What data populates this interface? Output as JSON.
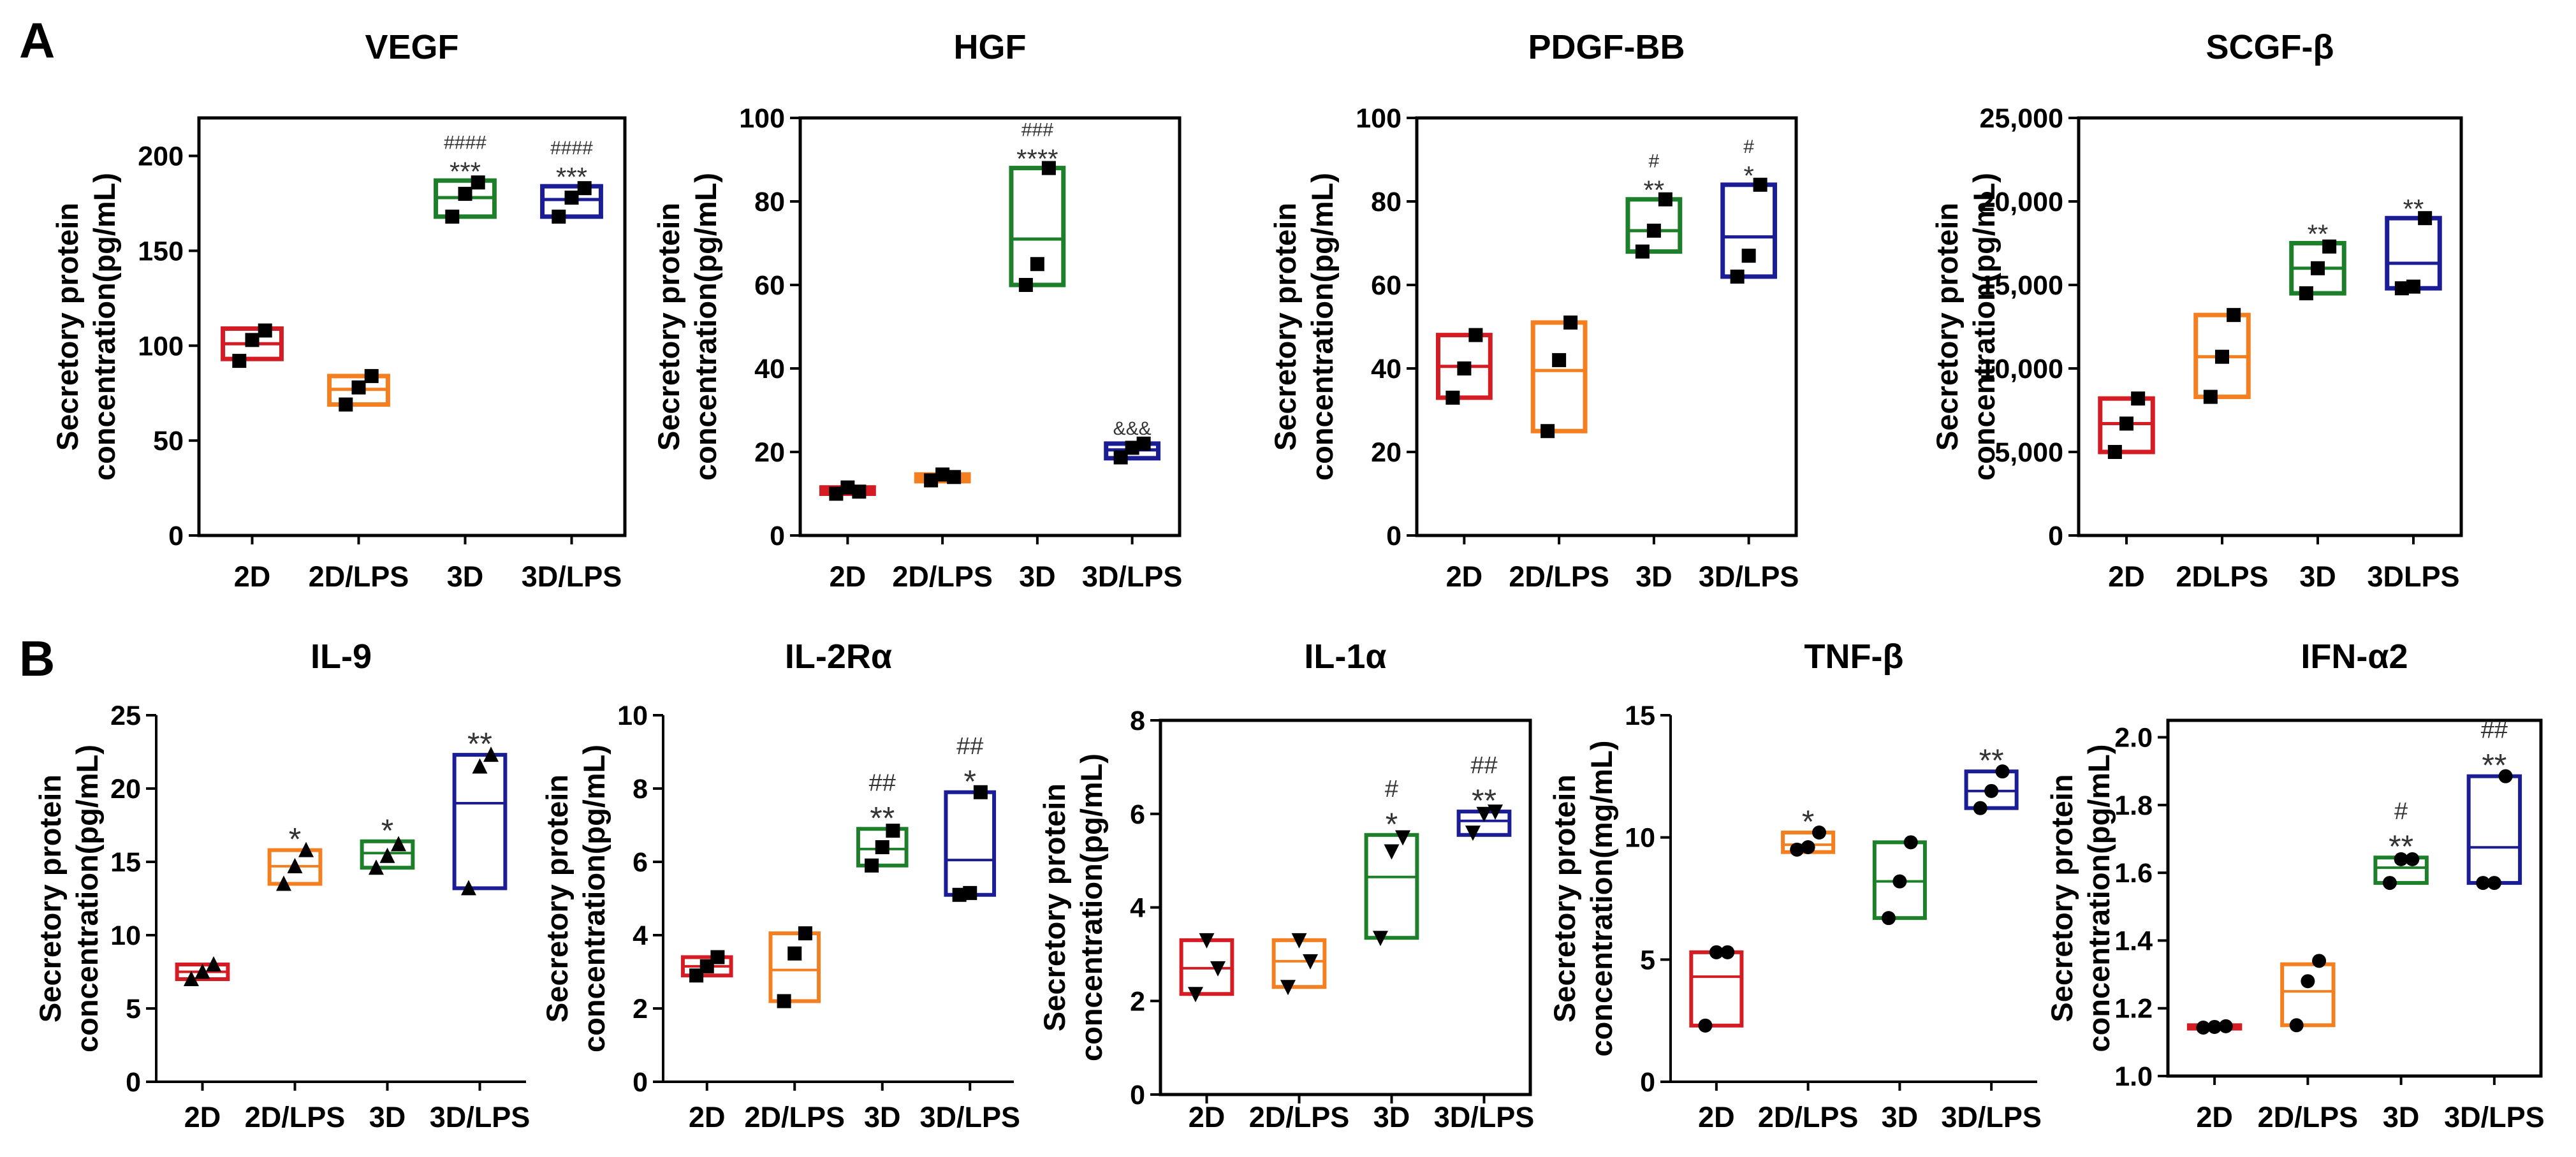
{
  "panels": [
    {
      "label": "A"
    },
    {
      "label": "B"
    }
  ],
  "colors": {
    "2D": "#d41c24",
    "2D/LPS": "#f47f20",
    "3D": "#1e7f2a",
    "3D/LPS": "#1a1d94",
    "axis": "#000000"
  },
  "chart_data": [
    {
      "type": "box",
      "panel": "A",
      "row": 0,
      "title": "VEGF",
      "ylabel": [
        "Secretory protein",
        "concentration(pg/mL)"
      ],
      "ylim": [
        0,
        220
      ],
      "yticks": [
        0,
        50,
        100,
        150,
        200
      ],
      "ytick_labels": [
        "0",
        "50",
        "100",
        "150",
        "200"
      ],
      "categories": [
        "2D",
        "2D/LPS",
        "3D",
        "3D/LPS"
      ],
      "groups": [
        {
          "q1": 93,
          "median": 101,
          "q3": 109,
          "points": [
            92,
            103,
            108
          ],
          "marker": "square",
          "annotations": []
        },
        {
          "q1": 69,
          "median": 77,
          "q3": 84,
          "points": [
            69,
            78,
            84
          ],
          "marker": "square",
          "annotations": []
        },
        {
          "q1": 168,
          "median": 178,
          "q3": 187,
          "points": [
            168,
            180,
            186
          ],
          "marker": "square",
          "annotations": [
            "####",
            "***"
          ]
        },
        {
          "q1": 168,
          "median": 177,
          "q3": 184,
          "points": [
            168,
            178,
            183
          ],
          "marker": "square",
          "annotations": [
            "####",
            "***"
          ]
        }
      ]
    },
    {
      "type": "box",
      "panel": "A",
      "row": 0,
      "title": "HGF",
      "ylabel": [
        "Secretory protein",
        "concentration(pg/mL)"
      ],
      "ylim": [
        0,
        100
      ],
      "yticks": [
        0,
        20,
        40,
        60,
        80,
        100
      ],
      "ytick_labels": [
        "0",
        "20",
        "40",
        "60",
        "80",
        "100"
      ],
      "categories": [
        "2D",
        "2D/LPS",
        "3D",
        "3D/LPS"
      ],
      "groups": [
        {
          "q1": 10,
          "median": 10.7,
          "q3": 11.5,
          "points": [
            10,
            11.5,
            10.5
          ],
          "marker": "square",
          "annotations": []
        },
        {
          "q1": 13,
          "median": 13.8,
          "q3": 14.6,
          "points": [
            13.2,
            14.6,
            14
          ],
          "marker": "square",
          "annotations": []
        },
        {
          "q1": 60,
          "median": 71,
          "q3": 88,
          "points": [
            60,
            65,
            88
          ],
          "marker": "square",
          "annotations": [
            "###",
            "****"
          ]
        },
        {
          "q1": 18.5,
          "median": 20.5,
          "q3": 22,
          "points": [
            18.7,
            21,
            22
          ],
          "marker": "square",
          "annotations": [
            "&&&"
          ]
        }
      ]
    },
    {
      "type": "box",
      "panel": "A",
      "row": 0,
      "title": "PDGF-BB",
      "ylabel": [
        "Secretory protein",
        "concentration(pg/mL)"
      ],
      "ylim": [
        0,
        100
      ],
      "yticks": [
        0,
        20,
        40,
        60,
        80,
        100
      ],
      "ytick_labels": [
        "0",
        "20",
        "40",
        "60",
        "80",
        "100"
      ],
      "categories": [
        "2D",
        "2D/LPS",
        "3D",
        "3D/LPS"
      ],
      "groups": [
        {
          "q1": 33,
          "median": 40.5,
          "q3": 48,
          "points": [
            33,
            40,
            48
          ],
          "marker": "square",
          "annotations": []
        },
        {
          "q1": 25,
          "median": 39.5,
          "q3": 51,
          "points": [
            25,
            42,
            51
          ],
          "marker": "square",
          "annotations": []
        },
        {
          "q1": 68,
          "median": 73,
          "q3": 80.5,
          "points": [
            68,
            73,
            80.5
          ],
          "marker": "square",
          "annotations": [
            "#",
            "**"
          ]
        },
        {
          "q1": 62,
          "median": 71.5,
          "q3": 84,
          "points": [
            62,
            67,
            84
          ],
          "marker": "square",
          "annotations": [
            "#",
            "*"
          ]
        }
      ]
    },
    {
      "type": "box",
      "panel": "A",
      "row": 0,
      "title": "SCGF-β",
      "ylabel": [
        "Secretory protein",
        "concentration(pg/mL)"
      ],
      "ylim": [
        0,
        25000
      ],
      "yticks": [
        0,
        5000,
        10000,
        15000,
        20000,
        25000
      ],
      "ytick_labels": [
        "0",
        "5,000",
        "10,000",
        "15,000",
        "20,000",
        "25,000"
      ],
      "categories": [
        "2D",
        "2DLPS",
        "3D",
        "3DLPS"
      ],
      "groups": [
        {
          "q1": 5000,
          "median": 6700,
          "q3": 8200,
          "points": [
            5000,
            6700,
            8200
          ],
          "marker": "square",
          "annotations": []
        },
        {
          "q1": 8300,
          "median": 10700,
          "q3": 13200,
          "points": [
            8300,
            10700,
            13200
          ],
          "marker": "square",
          "annotations": []
        },
        {
          "q1": 14500,
          "median": 16000,
          "q3": 17500,
          "points": [
            14500,
            16000,
            17300
          ],
          "marker": "square",
          "annotations": [
            "**"
          ]
        },
        {
          "q1": 14800,
          "median": 16300,
          "q3": 19000,
          "points": [
            14800,
            14900,
            19000
          ],
          "marker": "square",
          "annotations": [
            "**"
          ]
        }
      ]
    },
    {
      "type": "box",
      "panel": "B",
      "row": 1,
      "title": "IL-9",
      "ylabel": [
        "Secretory protein",
        "concentration(pg/mL)"
      ],
      "ylim": [
        0,
        25
      ],
      "yticks": [
        0,
        5,
        10,
        15,
        20,
        25
      ],
      "ytick_labels": [
        "0",
        "5",
        "10",
        "15",
        "20",
        "25"
      ],
      "categories": [
        "2D",
        "2D/LPS",
        "3D",
        "3D/LPS"
      ],
      "groups": [
        {
          "q1": 7,
          "median": 7.5,
          "q3": 8,
          "points": [
            7,
            7.5,
            8
          ],
          "marker": "triangle",
          "annotations": []
        },
        {
          "q1": 13.5,
          "median": 14.7,
          "q3": 15.8,
          "points": [
            13.5,
            14.7,
            15.8
          ],
          "marker": "triangle",
          "annotations": [
            "*"
          ]
        },
        {
          "q1": 14.6,
          "median": 15.6,
          "q3": 16.4,
          "points": [
            14.6,
            15.4,
            16.2
          ],
          "marker": "triangle",
          "annotations": [
            "*"
          ]
        },
        {
          "q1": 13.2,
          "median": 19,
          "q3": 22.3,
          "points": [
            13.2,
            21.5,
            22.3
          ],
          "marker": "triangle",
          "annotations": [
            "**"
          ]
        }
      ]
    },
    {
      "type": "box",
      "panel": "B",
      "row": 1,
      "title": "IL-2Rα",
      "ylabel": [
        "Secretory protein",
        "concentration(pg/mL)"
      ],
      "ylim": [
        0,
        10
      ],
      "yticks": [
        0,
        2,
        4,
        6,
        8,
        10
      ],
      "ytick_labels": [
        "0",
        "2",
        "4",
        "6",
        "8",
        "10"
      ],
      "categories": [
        "2D",
        "2D/LPS",
        "3D",
        "3D/LPS"
      ],
      "groups": [
        {
          "q1": 2.9,
          "median": 3.15,
          "q3": 3.4,
          "points": [
            2.9,
            3.15,
            3.4
          ],
          "marker": "square",
          "annotations": []
        },
        {
          "q1": 2.2,
          "median": 3.05,
          "q3": 4.05,
          "points": [
            2.2,
            3.5,
            4.05
          ],
          "marker": "square",
          "annotations": []
        },
        {
          "q1": 5.9,
          "median": 6.35,
          "q3": 6.9,
          "points": [
            5.9,
            6.4,
            6.85
          ],
          "marker": "square",
          "annotations": [
            "##",
            "**"
          ]
        },
        {
          "q1": 5.1,
          "median": 6.05,
          "q3": 7.9,
          "points": [
            5.1,
            5.15,
            7.9
          ],
          "marker": "square",
          "annotations": [
            "##",
            "*"
          ]
        }
      ]
    },
    {
      "type": "box",
      "panel": "B",
      "row": 1,
      "title": "IL-1α",
      "ylabel": [
        "Secretory protein",
        "concentration(pg/mL)"
      ],
      "ylim": [
        0,
        8
      ],
      "yticks": [
        0,
        2,
        4,
        6,
        8
      ],
      "ytick_labels": [
        "0",
        "2",
        "4",
        "6",
        "8"
      ],
      "categories": [
        "2D",
        "2D/LPS",
        "3D",
        "3D/LPS"
      ],
      "groups": [
        {
          "q1": 2.15,
          "median": 2.7,
          "q3": 3.3,
          "points": [
            2.15,
            3.3,
            2.7
          ],
          "marker": "triangle-down",
          "annotations": []
        },
        {
          "q1": 2.3,
          "median": 2.85,
          "q3": 3.3,
          "points": [
            2.3,
            3.3,
            2.85
          ],
          "marker": "triangle-down",
          "annotations": []
        },
        {
          "q1": 3.35,
          "median": 4.65,
          "q3": 5.55,
          "points": [
            3.35,
            5.2,
            5.5
          ],
          "marker": "triangle-down",
          "annotations": [
            "#",
            "*"
          ]
        },
        {
          "q1": 5.55,
          "median": 5.85,
          "q3": 6.05,
          "points": [
            5.6,
            6.0,
            6.05
          ],
          "marker": "triangle-down",
          "annotations": [
            "##",
            "**"
          ]
        }
      ]
    },
    {
      "type": "box",
      "panel": "B",
      "row": 1,
      "title": "TNF-β",
      "ylabel": [
        "Secretory protein",
        "concentration(mg/mL)"
      ],
      "ylim": [
        0,
        15
      ],
      "yticks": [
        0,
        5,
        10,
        15
      ],
      "ytick_labels": [
        "0",
        "5",
        "10",
        "15"
      ],
      "categories": [
        "2D",
        "2D/LPS",
        "3D",
        "3D/LPS"
      ],
      "groups": [
        {
          "q1": 2.3,
          "median": 4.3,
          "q3": 5.3,
          "points": [
            2.3,
            5.3,
            5.3
          ],
          "marker": "circle",
          "annotations": []
        },
        {
          "q1": 9.4,
          "median": 9.7,
          "q3": 10.2,
          "points": [
            9.5,
            9.6,
            10.2
          ],
          "marker": "circle",
          "annotations": [
            "*"
          ]
        },
        {
          "q1": 6.7,
          "median": 8.2,
          "q3": 9.8,
          "points": [
            6.7,
            8.2,
            9.8
          ],
          "marker": "circle",
          "annotations": []
        },
        {
          "q1": 11.2,
          "median": 11.9,
          "q3": 12.7,
          "points": [
            11.2,
            11.9,
            12.7
          ],
          "marker": "circle",
          "annotations": [
            "**"
          ]
        }
      ]
    },
    {
      "type": "box",
      "panel": "B",
      "row": 1,
      "title": "IFN-α2",
      "ylabel": [
        "Secretory protein",
        "concentration(pg/mL)"
      ],
      "ylim": [
        1.0,
        2.05
      ],
      "yticks": [
        1.0,
        1.2,
        1.4,
        1.6,
        1.8,
        2.0
      ],
      "ytick_labels": [
        "1.0",
        "1.2",
        "1.4",
        "1.6",
        "1.8",
        "2.0"
      ],
      "categories": [
        "2D",
        "2D/LPS",
        "3D",
        "3D/LPS"
      ],
      "groups": [
        {
          "q1": 1.14,
          "median": 1.145,
          "q3": 1.15,
          "points": [
            1.143,
            1.145,
            1.147
          ],
          "marker": "circle",
          "annotations": []
        },
        {
          "q1": 1.15,
          "median": 1.25,
          "q3": 1.33,
          "points": [
            1.15,
            1.28,
            1.34
          ],
          "marker": "circle",
          "annotations": []
        },
        {
          "q1": 1.57,
          "median": 1.615,
          "q3": 1.645,
          "points": [
            1.57,
            1.64,
            1.64
          ],
          "marker": "circle",
          "annotations": [
            "#",
            "**"
          ]
        },
        {
          "q1": 1.57,
          "median": 1.675,
          "q3": 1.885,
          "points": [
            1.57,
            1.57,
            1.885
          ],
          "marker": "circle",
          "annotations": [
            "##",
            "**"
          ]
        }
      ]
    }
  ]
}
